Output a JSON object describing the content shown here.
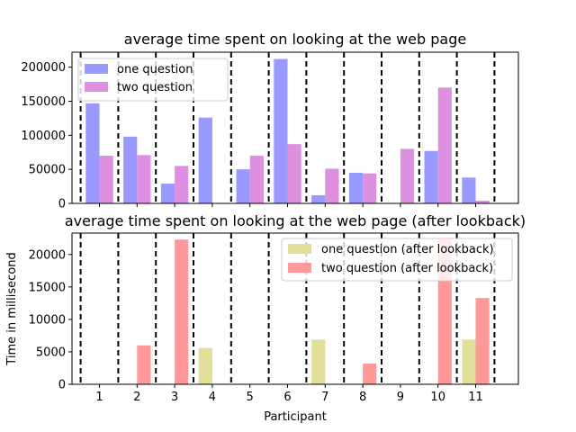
{
  "chart_data": [
    {
      "type": "bar",
      "title": "average time spent on looking at the web page",
      "xlabel": "",
      "ylabel": "",
      "categories": [
        "1",
        "2",
        "3",
        "4",
        "5",
        "6",
        "7",
        "8",
        "9",
        "10",
        "11"
      ],
      "show_x_tick_labels": false,
      "ylim": [
        0,
        222000
      ],
      "yticks": [
        0,
        50000,
        100000,
        150000,
        200000
      ],
      "legend_position": "top-left",
      "grid": false,
      "separators": "dashed vertical lines between participants",
      "series": [
        {
          "name": "one question",
          "color": "#9999ff",
          "values": [
            147000,
            98000,
            29000,
            126000,
            50000,
            212000,
            12000,
            45000,
            0,
            77000,
            38000
          ]
        },
        {
          "name": "two question",
          "color": "#dd8fe0",
          "values": [
            70000,
            71000,
            55000,
            0,
            70000,
            87000,
            51000,
            44000,
            80000,
            170000,
            4000
          ]
        }
      ]
    },
    {
      "type": "bar",
      "title": "average time spent on looking at the web page (after lookback)",
      "xlabel": "Participant",
      "ylabel": "Time in millisecond",
      "categories": [
        "1",
        "2",
        "3",
        "4",
        "5",
        "6",
        "7",
        "8",
        "9",
        "10",
        "11"
      ],
      "show_x_tick_labels": true,
      "ylim": [
        0,
        23300
      ],
      "yticks": [
        0,
        5000,
        10000,
        15000,
        20000
      ],
      "legend_position": "top-right",
      "grid": false,
      "separators": "dashed vertical lines between participants",
      "series": [
        {
          "name": "one question (after lookback)",
          "color": "#e0e09a",
          "values": [
            0,
            0,
            0,
            5600,
            0,
            0,
            6900,
            0,
            0,
            0,
            6900
          ]
        },
        {
          "name": "two question (after lookback)",
          "color": "#ff9999",
          "values": [
            0,
            6000,
            22300,
            0,
            0,
            0,
            0,
            3200,
            0,
            22300,
            13300
          ]
        }
      ]
    }
  ]
}
